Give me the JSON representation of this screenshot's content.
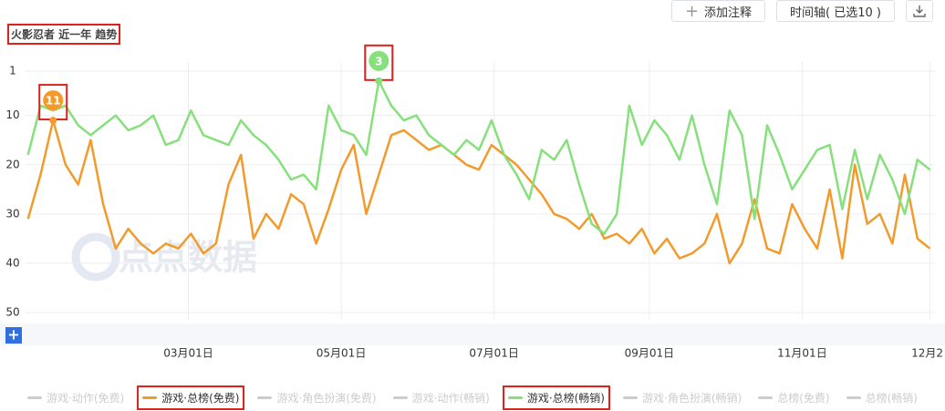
{
  "chart_data": {
    "type": "line",
    "title": "火影忍者 近一年 趋势",
    "watermark": "点点数据",
    "buttons": [
      "添加注释",
      "时间轴( 已选10 )"
    ],
    "x": [
      -4,
      1,
      6,
      11,
      16,
      21,
      26,
      31,
      36,
      41,
      46,
      51,
      56,
      61,
      66,
      71,
      76,
      81,
      86,
      91,
      96,
      101,
      106,
      111,
      116,
      121,
      126,
      131,
      136,
      141,
      146,
      151,
      156,
      161,
      166,
      171,
      176,
      181,
      186,
      191,
      196,
      201,
      206,
      211,
      216,
      221,
      226,
      231,
      236,
      241,
      246,
      251,
      256,
      261,
      266,
      271,
      276,
      281,
      286,
      291,
      296,
      301,
      306,
      311,
      316,
      321,
      326,
      331,
      336,
      341,
      346,
      351,
      356
    ],
    "xlim": [
      -5,
      358
    ],
    "xticks": [
      {
        "value": 60,
        "label": "03月01日"
      },
      {
        "value": 121,
        "label": "05月01日"
      },
      {
        "value": 182,
        "label": "07月01日"
      },
      {
        "value": 244,
        "label": "09月01日"
      },
      {
        "value": 305,
        "label": "11月01日"
      },
      {
        "value": 356,
        "label": "12月2"
      }
    ],
    "ylim": [
      1,
      50
    ],
    "y_inverted": true,
    "yticks": [
      1,
      10,
      20,
      30,
      40,
      50
    ],
    "grid": true,
    "series": [
      {
        "name": "游戏·动作(免费)",
        "visible": false
      },
      {
        "name": "游戏·总榜(免费)",
        "visible": true,
        "color": "#f29b2c",
        "values": [
          31,
          22,
          11,
          20,
          24,
          15,
          28,
          37,
          33,
          36,
          38,
          36,
          37,
          34,
          38,
          36,
          24,
          18,
          35,
          30,
          33,
          26,
          28,
          36,
          29,
          21,
          16,
          30,
          22,
          14,
          13,
          15,
          17,
          16,
          18,
          20,
          21,
          16,
          18,
          20,
          23,
          26,
          30,
          31,
          33,
          30,
          35,
          34,
          36,
          33,
          38,
          35,
          39,
          38,
          36,
          30,
          40,
          36,
          27,
          37,
          38,
          28,
          33,
          37,
          25,
          39,
          20,
          32,
          30,
          36,
          22,
          35,
          37
        ]
      },
      {
        "name": "游戏·角色扮演(免费)",
        "visible": false
      },
      {
        "name": "游戏·动作(畅销)",
        "visible": false
      },
      {
        "name": "游戏·总榜(畅销)",
        "visible": true,
        "color": "#86e07c",
        "values": [
          18,
          8,
          9,
          8,
          12,
          14,
          12,
          10,
          13,
          12,
          10,
          16,
          15,
          9,
          14,
          15,
          16,
          11,
          14,
          16,
          19,
          23,
          22,
          25,
          8,
          13,
          14,
          18,
          3,
          8,
          11,
          10,
          14,
          16,
          18,
          15,
          17,
          11,
          18,
          22,
          27,
          17,
          19,
          15,
          24,
          32,
          34,
          30,
          8,
          16,
          11,
          14,
          19,
          10,
          20,
          28,
          9,
          14,
          31,
          12,
          18,
          25,
          21,
          17,
          16,
          29,
          17,
          27,
          18,
          23,
          30,
          19,
          21
        ]
      },
      {
        "name": "游戏·角色扮演(畅销)",
        "visible": false
      },
      {
        "name": "总榜(免费)",
        "visible": false
      },
      {
        "name": "总榜(畅销)",
        "visible": false
      }
    ],
    "annotations": [
      {
        "series": 1,
        "x": 6,
        "value": 11
      },
      {
        "series": 4,
        "x": 136,
        "value": 3
      }
    ]
  }
}
